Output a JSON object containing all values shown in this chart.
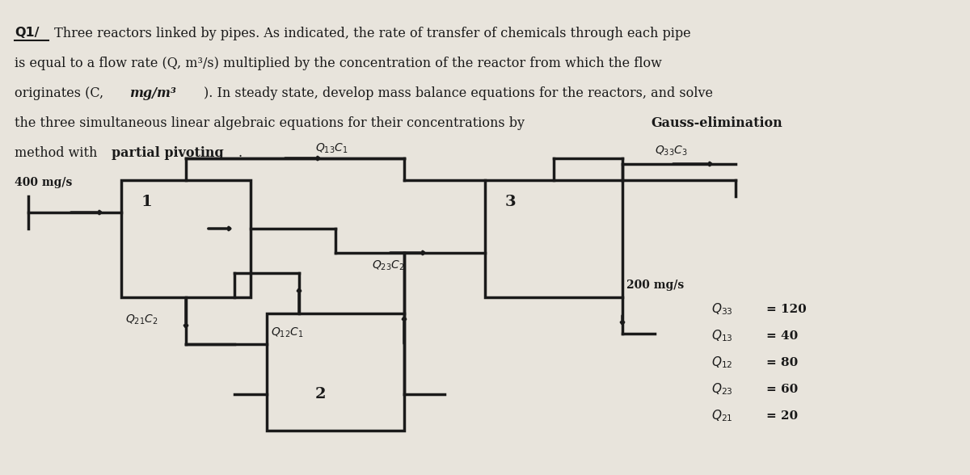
{
  "bg_color": "#e8e4dc",
  "text_color": "#1a1a1a",
  "title_line1": "Q1/ Three reactors linked by pipes. As indicated, the rate of transfer of chemicals through each pipe",
  "title_line2": "is equal to a flow rate (Q, m³/s) multiplied by the concentration of the reactor from which the flow",
  "title_line3": "originates (C, mg/m³). In steady state, develop mass balance equations for the reactors, and solve",
  "title_line4": "the three simultaneous linear algebraic equations for their concentrations by Gauss-elimination",
  "title_line5": "method with partial pivoting.",
  "flow_values": {
    "Q33": 120,
    "Q13": 40,
    "Q12": 80,
    "Q23": 60,
    "Q21": 20
  },
  "input_flow": "400 mg/s",
  "output_flow": "200 mg/s",
  "reactor_labels": [
    "1",
    "2",
    "3"
  ]
}
